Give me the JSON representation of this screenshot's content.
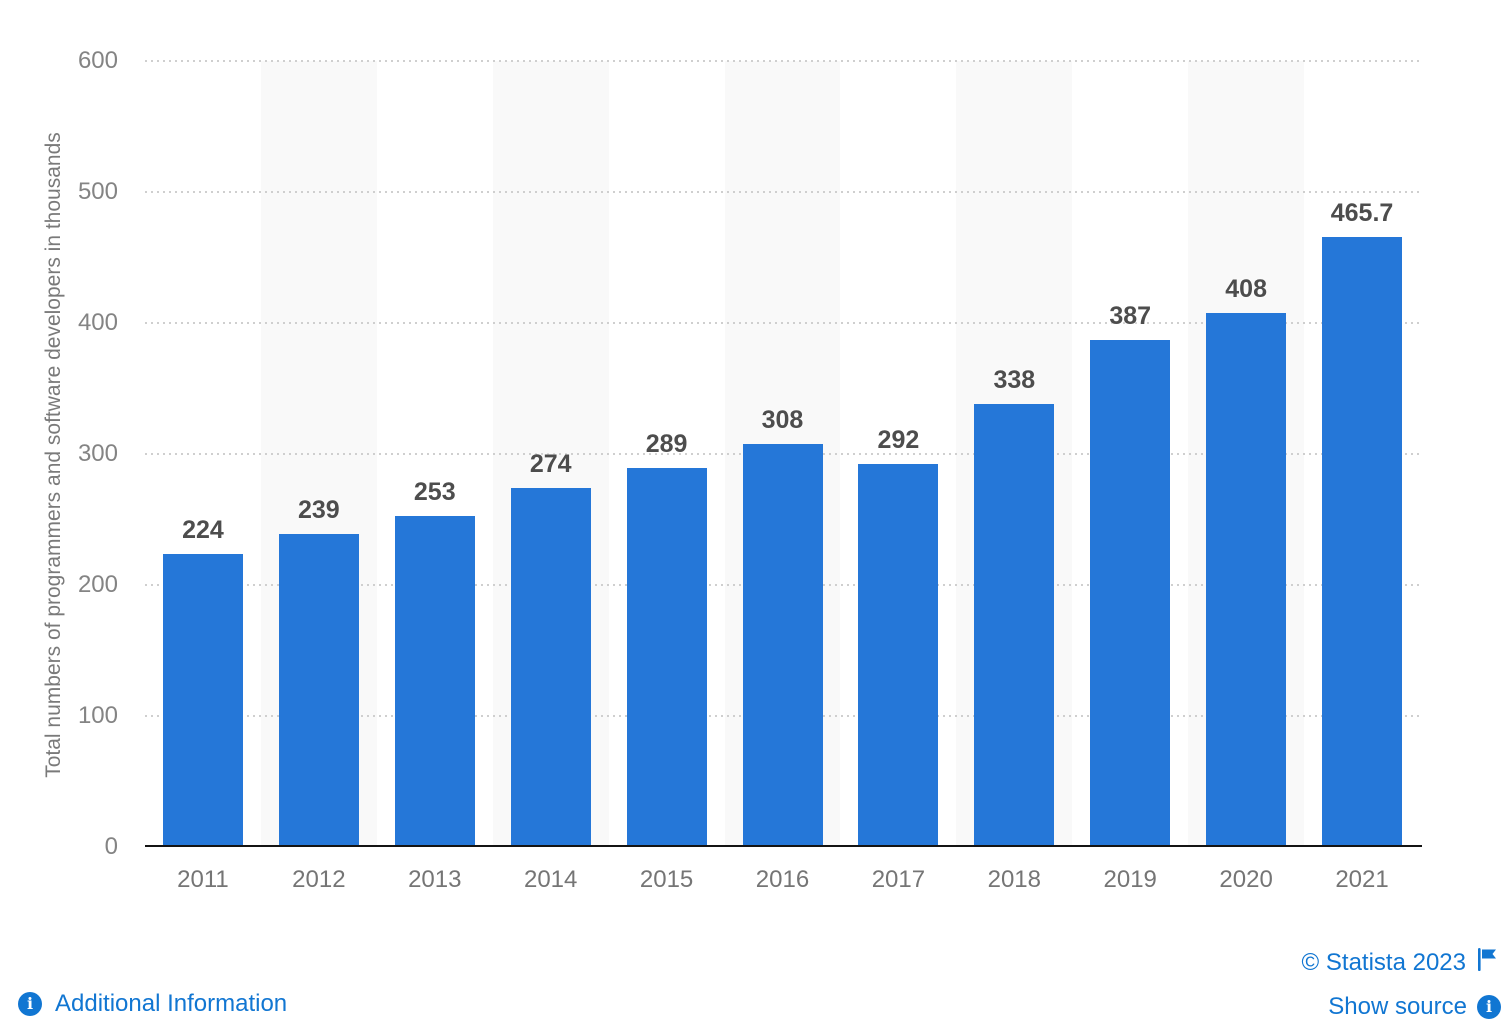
{
  "chart_data": {
    "type": "bar",
    "categories": [
      "2011",
      "2012",
      "2013",
      "2014",
      "2015",
      "2016",
      "2017",
      "2018",
      "2019",
      "2020",
      "2021"
    ],
    "values": [
      224,
      239,
      253,
      274,
      289,
      308,
      292,
      338,
      387,
      408,
      465.7
    ],
    "value_labels": [
      "224",
      "239",
      "253",
      "274",
      "289",
      "308",
      "292",
      "338",
      "387",
      "408",
      "465.7"
    ],
    "title": "",
    "xlabel": "",
    "ylabel": "Total numbers of programmers and software developers in thousands",
    "ylim": [
      0,
      600
    ],
    "yticks": [
      0,
      100,
      200,
      300,
      400,
      500,
      600
    ],
    "grid": "horizontal dotted",
    "legend": "none",
    "bar_color": "#2577d8",
    "band_color": "#f9f9f9",
    "banded_columns": [
      1,
      3,
      5,
      7,
      9
    ]
  },
  "footer": {
    "additional_information": "Additional Information",
    "copyright": "© Statista 2023",
    "show_source": "Show source",
    "info_icon_glyph": "i"
  },
  "colors": {
    "bar": "#2577d8",
    "link": "#1176d2",
    "value_label": "#4d4d4d",
    "axis_tick": "#848484",
    "x_tick": "#757575",
    "y_title": "#7a7a7a",
    "gridline": "#cfcfcf",
    "axis_line": "#141414",
    "plot_band": "#f9f9f9",
    "background": "#ffffff"
  }
}
